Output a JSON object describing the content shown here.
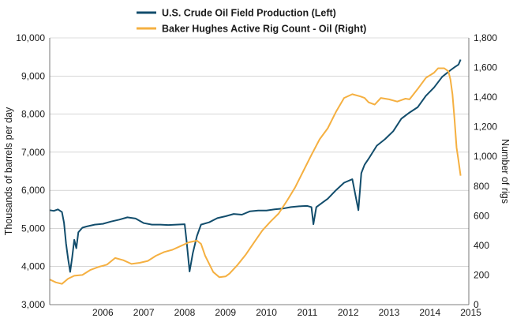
{
  "chart_data": {
    "type": "line",
    "x_axis": {
      "ticks": [
        "2006",
        "2007",
        "2008",
        "2009",
        "2010",
        "2011",
        "2012",
        "2013",
        "2014",
        "2015"
      ],
      "range": [
        2005.2,
        2015.45
      ]
    },
    "y_left": {
      "label": "Thousands of barrels per day",
      "range": [
        3000,
        10000
      ],
      "ticks": [
        "3,000",
        "4,000",
        "5,000",
        "6,000",
        "7,000",
        "8,000",
        "9,000",
        "10,000"
      ],
      "tick_values": [
        3000,
        4000,
        5000,
        6000,
        7000,
        8000,
        9000,
        10000
      ]
    },
    "y_right": {
      "label": "Number of rigs",
      "range": [
        0,
        1800
      ],
      "ticks": [
        "0",
        "200",
        "400",
        "600",
        "800",
        "1,000",
        "1,200",
        "1,400",
        "1,600",
        "1,800"
      ],
      "tick_values": [
        0,
        200,
        400,
        600,
        800,
        1000,
        1200,
        1400,
        1600,
        1800
      ]
    },
    "grid": true,
    "legend_position": "top",
    "series": [
      {
        "name": "U.S. Crude Oil Field Production  (Left)",
        "axis": "left",
        "color": "#124d6c",
        "points": [
          [
            2005.2,
            5480
          ],
          [
            2005.3,
            5460
          ],
          [
            2005.4,
            5500
          ],
          [
            2005.5,
            5430
          ],
          [
            2005.55,
            5150
          ],
          [
            2005.6,
            4600
          ],
          [
            2005.65,
            4200
          ],
          [
            2005.7,
            3860
          ],
          [
            2005.75,
            4250
          ],
          [
            2005.8,
            4700
          ],
          [
            2005.85,
            4480
          ],
          [
            2005.9,
            4900
          ],
          [
            2006.0,
            5020
          ],
          [
            2006.1,
            5050
          ],
          [
            2006.3,
            5100
          ],
          [
            2006.5,
            5120
          ],
          [
            2006.7,
            5180
          ],
          [
            2006.9,
            5230
          ],
          [
            2007.1,
            5290
          ],
          [
            2007.3,
            5260
          ],
          [
            2007.5,
            5140
          ],
          [
            2007.7,
            5100
          ],
          [
            2007.9,
            5100
          ],
          [
            2008.1,
            5090
          ],
          [
            2008.3,
            5100
          ],
          [
            2008.5,
            5110
          ],
          [
            2008.55,
            4650
          ],
          [
            2008.62,
            3870
          ],
          [
            2008.7,
            4350
          ],
          [
            2008.8,
            4800
          ],
          [
            2008.9,
            5100
          ],
          [
            2009.1,
            5160
          ],
          [
            2009.3,
            5270
          ],
          [
            2009.5,
            5320
          ],
          [
            2009.7,
            5380
          ],
          [
            2009.9,
            5360
          ],
          [
            2010.1,
            5450
          ],
          [
            2010.3,
            5470
          ],
          [
            2010.5,
            5470
          ],
          [
            2010.7,
            5500
          ],
          [
            2010.9,
            5520
          ],
          [
            2011.1,
            5560
          ],
          [
            2011.3,
            5580
          ],
          [
            2011.5,
            5590
          ],
          [
            2011.6,
            5560
          ],
          [
            2011.65,
            5110
          ],
          [
            2011.72,
            5560
          ],
          [
            2011.9,
            5700
          ],
          [
            2012.0,
            5780
          ],
          [
            2012.2,
            6000
          ],
          [
            2012.4,
            6200
          ],
          [
            2012.6,
            6290
          ],
          [
            2012.75,
            5480
          ],
          [
            2012.82,
            6450
          ],
          [
            2012.9,
            6670
          ],
          [
            2013.0,
            6830
          ],
          [
            2013.2,
            7170
          ],
          [
            2013.4,
            7340
          ],
          [
            2013.6,
            7550
          ],
          [
            2013.8,
            7880
          ],
          [
            2014.0,
            8040
          ],
          [
            2014.2,
            8180
          ],
          [
            2014.4,
            8480
          ],
          [
            2014.6,
            8700
          ],
          [
            2014.8,
            8980
          ],
          [
            2015.0,
            9150
          ],
          [
            2015.1,
            9230
          ],
          [
            2015.2,
            9300
          ],
          [
            2015.25,
            9430
          ]
        ]
      },
      {
        "name": "Baker Hughes Active Rig Count - Oil  (Right)",
        "axis": "right",
        "color": "#f5b041",
        "points": [
          [
            2005.2,
            170
          ],
          [
            2005.35,
            150
          ],
          [
            2005.5,
            140
          ],
          [
            2005.65,
            175
          ],
          [
            2005.8,
            195
          ],
          [
            2006.0,
            200
          ],
          [
            2006.2,
            235
          ],
          [
            2006.4,
            255
          ],
          [
            2006.6,
            270
          ],
          [
            2006.8,
            315
          ],
          [
            2007.0,
            300
          ],
          [
            2007.2,
            275
          ],
          [
            2007.4,
            282
          ],
          [
            2007.6,
            295
          ],
          [
            2007.8,
            330
          ],
          [
            2008.0,
            355
          ],
          [
            2008.2,
            370
          ],
          [
            2008.4,
            395
          ],
          [
            2008.6,
            420
          ],
          [
            2008.8,
            432
          ],
          [
            2008.9,
            410
          ],
          [
            2009.0,
            330
          ],
          [
            2009.2,
            220
          ],
          [
            2009.35,
            185
          ],
          [
            2009.5,
            190
          ],
          [
            2009.6,
            210
          ],
          [
            2009.8,
            270
          ],
          [
            2010.0,
            340
          ],
          [
            2010.2,
            420
          ],
          [
            2010.4,
            500
          ],
          [
            2010.6,
            560
          ],
          [
            2010.8,
            615
          ],
          [
            2011.0,
            700
          ],
          [
            2011.2,
            790
          ],
          [
            2011.4,
            900
          ],
          [
            2011.6,
            1010
          ],
          [
            2011.8,
            1115
          ],
          [
            2012.0,
            1190
          ],
          [
            2012.2,
            1300
          ],
          [
            2012.4,
            1395
          ],
          [
            2012.6,
            1420
          ],
          [
            2012.8,
            1405
          ],
          [
            2012.9,
            1395
          ],
          [
            2013.0,
            1365
          ],
          [
            2013.15,
            1350
          ],
          [
            2013.3,
            1395
          ],
          [
            2013.5,
            1385
          ],
          [
            2013.7,
            1370
          ],
          [
            2013.9,
            1390
          ],
          [
            2014.0,
            1385
          ],
          [
            2014.2,
            1455
          ],
          [
            2014.4,
            1530
          ],
          [
            2014.6,
            1565
          ],
          [
            2014.7,
            1595
          ],
          [
            2014.85,
            1595
          ],
          [
            2014.95,
            1575
          ],
          [
            2015.0,
            1520
          ],
          [
            2015.05,
            1420
          ],
          [
            2015.1,
            1250
          ],
          [
            2015.15,
            1060
          ],
          [
            2015.2,
            970
          ],
          [
            2015.25,
            870
          ]
        ]
      }
    ]
  }
}
